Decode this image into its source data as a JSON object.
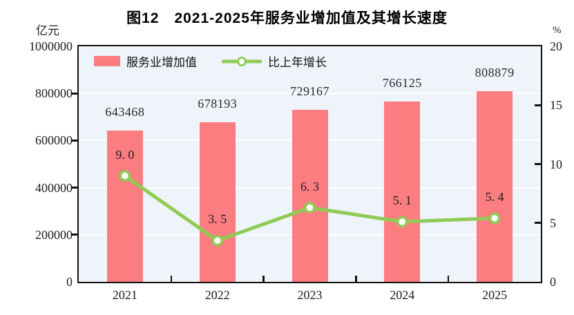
{
  "title": "图12　2021-2025年服务业增加值及其增长速度",
  "left_axis_unit": "亿元",
  "right_axis_unit": "%",
  "legend": [
    {
      "label": "服务业增加值",
      "type": "bar",
      "color": "#fb7d7f"
    },
    {
      "label": "比上年增长",
      "type": "line",
      "color": "#8fcb56"
    }
  ],
  "chart_data": {
    "type": "bar+line",
    "title": "图12　2021-2025年服务业增加值及其增长速度",
    "categories": [
      "2021",
      "2022",
      "2023",
      "2024",
      "2025"
    ],
    "series": [
      {
        "name": "服务业增加值",
        "type": "bar",
        "axis": "left",
        "unit": "亿元",
        "values": [
          643468,
          678193,
          729167,
          766125,
          808879
        ],
        "labels": [
          "643468",
          "678193",
          "729167",
          "766125",
          "808879"
        ],
        "color": "#fb7d7f"
      },
      {
        "name": "比上年增长",
        "type": "line",
        "axis": "right",
        "unit": "%",
        "values": [
          9.0,
          3.5,
          6.3,
          5.1,
          5.4
        ],
        "labels": [
          "9. 0",
          "3. 5",
          "6. 3",
          "5. 1",
          "5. 4"
        ],
        "color": "#8fcb56",
        "marker": "white-circle-green-ring"
      }
    ],
    "left_axis": {
      "min": 0,
      "max": 1000000,
      "tick_interval": 200000,
      "ticks": [
        "0",
        "200000",
        "400000",
        "600000",
        "800000",
        "1000000"
      ]
    },
    "right_axis": {
      "min": 0,
      "max": 20,
      "tick_interval": 5,
      "ticks": [
        "0",
        "5",
        "10",
        "15",
        "20"
      ]
    },
    "grid": "horizontal-white",
    "plot_bg": "#eef4f9",
    "frame_color": "#111111",
    "legend_position": "top-left-inside"
  }
}
